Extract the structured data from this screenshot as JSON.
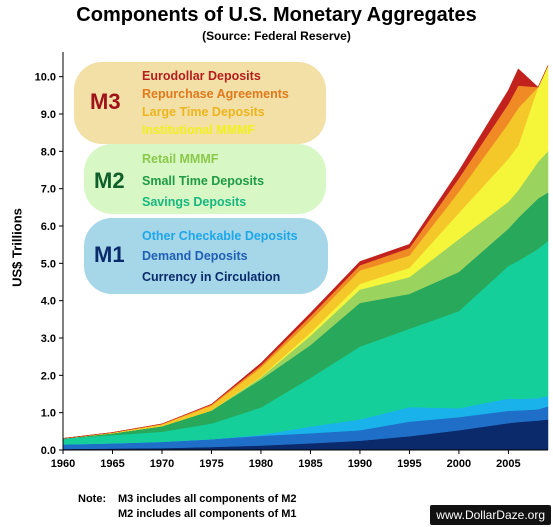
{
  "chart_data": {
    "type": "area",
    "title": "Components of U.S. Monetary Aggregates",
    "subtitle": "(Source: Federal Reserve)",
    "ylabel": "US$ Trillions",
    "xlabel": "",
    "xlim": [
      1960,
      2009
    ],
    "ylim": [
      0,
      10.5
    ],
    "x_ticks": [
      "1960",
      "1965",
      "1970",
      "1975",
      "1980",
      "1985",
      "1990",
      "1995",
      "2000",
      "2005"
    ],
    "y_ticks": [
      "0.0",
      "1.0",
      "2.0",
      "3.0",
      "4.0",
      "5.0",
      "6.0",
      "7.0",
      "8.0",
      "9.0",
      "10.0"
    ],
    "grid": false,
    "stacked": true,
    "x": [
      1960,
      1965,
      1970,
      1975,
      1980,
      1985,
      1990,
      1995,
      2000,
      2005,
      2006,
      2008,
      2009
    ],
    "series": [
      {
        "name": "Currency in Circulation",
        "color": "#0a2a6b",
        "aggregate": "M1",
        "values": [
          0.03,
          0.04,
          0.05,
          0.08,
          0.12,
          0.18,
          0.25,
          0.37,
          0.53,
          0.72,
          0.75,
          0.79,
          0.82
        ]
      },
      {
        "name": "Demand Deposits",
        "color": "#1f6fc8",
        "aggregate": "M1",
        "values": [
          0.12,
          0.14,
          0.17,
          0.21,
          0.26,
          0.27,
          0.28,
          0.39,
          0.35,
          0.33,
          0.31,
          0.3,
          0.35
        ]
      },
      {
        "name": "Other Checkable Deposits",
        "color": "#19b2ea",
        "aggregate": "M1",
        "values": [
          0.0,
          0.0,
          0.0,
          0.0,
          0.03,
          0.18,
          0.29,
          0.39,
          0.24,
          0.33,
          0.31,
          0.3,
          0.28
        ]
      },
      {
        "name": "Savings Deposits",
        "color": "#15cf9a",
        "aggregate": "M2",
        "values": [
          0.16,
          0.22,
          0.27,
          0.42,
          0.73,
          1.3,
          1.95,
          2.1,
          2.6,
          3.55,
          3.7,
          4.0,
          4.15
        ]
      },
      {
        "name": "Small Time Deposits",
        "color": "#27a85a",
        "aggregate": "M2",
        "values": [
          0.0,
          0.05,
          0.15,
          0.35,
          0.75,
          0.88,
          1.17,
          0.93,
          1.05,
          1.0,
          1.15,
          1.35,
          1.3
        ]
      },
      {
        "name": "Retail MMMF",
        "color": "#9bd35f",
        "aggregate": "M2",
        "values": [
          0.0,
          0.0,
          0.0,
          0.0,
          0.06,
          0.25,
          0.36,
          0.45,
          0.88,
          0.72,
          0.74,
          0.98,
          1.1
        ]
      },
      {
        "name": "Institutional MMMF",
        "color": "#f5f53a",
        "aggregate": "M3",
        "values": [
          0.0,
          0.0,
          0.0,
          0.0,
          0.02,
          0.08,
          0.15,
          0.25,
          0.7,
          1.15,
          1.2,
          2.0,
          2.3
        ]
      },
      {
        "name": "Large Time Deposits",
        "color": "#f5c82a",
        "aggregate": "M3",
        "values": [
          0.0,
          0.02,
          0.05,
          0.13,
          0.24,
          0.32,
          0.36,
          0.33,
          0.57,
          0.95,
          1.0,
          0,
          0
        ]
      },
      {
        "name": "Repurchase Agreements",
        "color": "#f08a25",
        "aggregate": "M3",
        "values": [
          0.0,
          0.0,
          0.01,
          0.03,
          0.06,
          0.12,
          0.14,
          0.2,
          0.36,
          0.52,
          0.6,
          0,
          0
        ]
      },
      {
        "name": "Eurodollar Deposits",
        "color": "#c1221e",
        "aggregate": "M3",
        "values": [
          0.0,
          0.0,
          0.0,
          0.01,
          0.06,
          0.09,
          0.1,
          0.1,
          0.2,
          0.37,
          0.45,
          0,
          0
        ]
      }
    ]
  },
  "legend": {
    "m3": {
      "label": "M3",
      "items": [
        "Eurodollar Deposits",
        "Repurchase Agreements",
        "Large Time Deposits",
        "Institutional MMMF"
      ]
    },
    "m2": {
      "label": "M2",
      "items": [
        "Retail MMMF",
        "Small Time Deposits",
        "Savings Deposits"
      ]
    },
    "m1": {
      "label": "M1",
      "items": [
        "Other Checkable Deposits",
        "Demand Deposits",
        "Currency in Circulation"
      ]
    }
  },
  "note": {
    "label": "Note:",
    "line1": "M3 includes all components of M2",
    "line2": "M2 includes all components of M1"
  },
  "watermark": "www.DollarDaze.org"
}
